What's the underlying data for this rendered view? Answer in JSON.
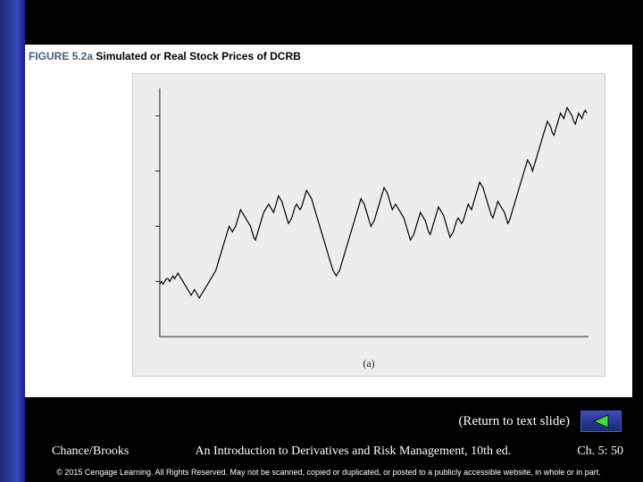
{
  "figure": {
    "label": "FIGURE 5.2a",
    "title": "Simulated or Real Stock Prices of DCRB",
    "sub_label": "(a)",
    "chart": {
      "type": "line",
      "background_color": "#ededed",
      "line_color": "#000000",
      "line_width": 1.2,
      "xlim": [
        0,
        260
      ],
      "ylim": [
        80,
        170
      ],
      "ytick_positions": [
        100,
        120,
        140,
        160
      ],
      "series": [
        99,
        100,
        99,
        100,
        101,
        101,
        100,
        101,
        102,
        101,
        102,
        103,
        102,
        101,
        100,
        99,
        98,
        97,
        96,
        95,
        96,
        97,
        96,
        95,
        94,
        95,
        96,
        97,
        98,
        99,
        100,
        101,
        102,
        103,
        104,
        106,
        108,
        110,
        112,
        114,
        116,
        118,
        120,
        119,
        118,
        119,
        120,
        122,
        124,
        126,
        125,
        124,
        123,
        122,
        121,
        120,
        118,
        116,
        115,
        117,
        119,
        121,
        123,
        125,
        126,
        127,
        128,
        127,
        126,
        125,
        127,
        129,
        131,
        130,
        129,
        127,
        125,
        123,
        121,
        122,
        123,
        125,
        127,
        128,
        127,
        126,
        127,
        129,
        131,
        133,
        132,
        131,
        130,
        128,
        126,
        124,
        122,
        120,
        118,
        116,
        114,
        112,
        110,
        108,
        106,
        104,
        103,
        102,
        103,
        104,
        106,
        108,
        110,
        112,
        114,
        116,
        118,
        120,
        122,
        124,
        126,
        128,
        130,
        129,
        128,
        126,
        124,
        122,
        120,
        121,
        122,
        124,
        126,
        128,
        130,
        132,
        134,
        133,
        132,
        130,
        128,
        126,
        127,
        128,
        127,
        126,
        125,
        124,
        123,
        121,
        119,
        117,
        115,
        116,
        117,
        119,
        121,
        123,
        125,
        124,
        123,
        122,
        120,
        118,
        117,
        119,
        121,
        123,
        125,
        127,
        126,
        125,
        124,
        122,
        120,
        118,
        116,
        117,
        118,
        120,
        122,
        123,
        122,
        121,
        122,
        124,
        126,
        128,
        127,
        126,
        128,
        130,
        132,
        134,
        136,
        135,
        134,
        132,
        130,
        128,
        126,
        124,
        123,
        125,
        127,
        129,
        128,
        127,
        126,
        125,
        123,
        121,
        122,
        124,
        126,
        128,
        130,
        132,
        134,
        136,
        138,
        140,
        142,
        144,
        143,
        142,
        140,
        142,
        144,
        146,
        148,
        150,
        152,
        154,
        156,
        158,
        157,
        156,
        154,
        153,
        155,
        157,
        159,
        161,
        160,
        159,
        161,
        163,
        162,
        161,
        160,
        158,
        157,
        159,
        161,
        160,
        159,
        161,
        162,
        161
      ]
    }
  },
  "navigation": {
    "return_link": "(Return to text slide)",
    "back_icon_color": "#3ae03a"
  },
  "footer": {
    "authors": "Chance/Brooks",
    "book_title": "An Introduction to Derivatives and Risk Management, 10th ed.",
    "page_ref": "Ch. 5: 50",
    "copyright": "© 2015 Cengage Learning. All Rights Reserved. May not be scanned, copied or duplicated, or posted to a publicly accessible website, in whole or in part."
  },
  "colors": {
    "slide_bg": "#000000",
    "sidebar_gradient": [
      "#1a2a6c",
      "#3a4abc"
    ],
    "text_white": "#ffffff"
  }
}
